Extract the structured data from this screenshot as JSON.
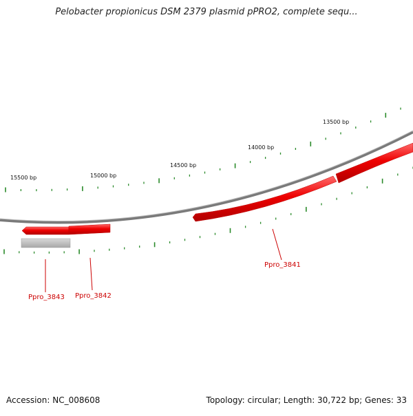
{
  "title": "Pelobacter propionicus DSM 2379 plasmid pPRO2, complete sequ...",
  "footer": {
    "accession": "Accession: NC_008608",
    "summary": "Topology: circular; Length: 30,722 bp; Genes: 33"
  },
  "tick_labels": [
    "15500 bp",
    "15000 bp",
    "14500 bp",
    "14000 bp",
    "13500 bp"
  ],
  "genes": [
    {
      "label": "Ppro_3843"
    },
    {
      "label": "Ppro_3842"
    },
    {
      "label": "Ppro_3841"
    }
  ],
  "colors": {
    "gene": "#ee0000",
    "gene_label": "#cc0000",
    "backbone": "#888888",
    "tick": "#2a8a2a",
    "other_feature": "#bbbbbb"
  }
}
